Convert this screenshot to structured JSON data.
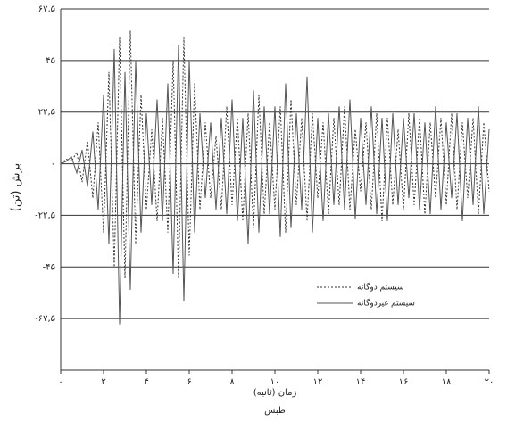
{
  "chart_data": {
    "type": "line",
    "x_label": "زمان (ثانیه)",
    "subtitle": "طبس",
    "y_label": "برش (تن)",
    "x": [
      0,
      0.25,
      0.5,
      0.75,
      1,
      1.25,
      1.5,
      1.75,
      2,
      2.25,
      2.5,
      2.75,
      3,
      3.25,
      3.5,
      3.75,
      4,
      4.25,
      4.5,
      4.75,
      5,
      5.25,
      5.5,
      5.75,
      6,
      6.25,
      6.5,
      6.75,
      7,
      7.25,
      7.5,
      7.75,
      8,
      8.25,
      8.5,
      8.75,
      9,
      9.25,
      9.5,
      9.75,
      10,
      10.25,
      10.5,
      10.75,
      11,
      11.25,
      11.5,
      11.75,
      12,
      12.25,
      12.5,
      12.75,
      13,
      13.25,
      13.5,
      13.75,
      14,
      14.25,
      14.5,
      14.75,
      15,
      15.25,
      15.5,
      15.75,
      16,
      16.25,
      16.5,
      16.75,
      17,
      17.25,
      17.5,
      17.75,
      18,
      18.25,
      18.5,
      18.75,
      19,
      19.25,
      19.5,
      19.75,
      20
    ],
    "series": [
      {
        "name": "سیستم دوگانه",
        "color": "#333333",
        "dashed": true,
        "values": [
          0,
          2,
          1,
          5,
          -8,
          10,
          -15,
          18,
          -30,
          40,
          -45,
          55,
          -50,
          58,
          -35,
          30,
          -20,
          15,
          -25,
          20,
          -30,
          45,
          -50,
          55,
          -40,
          35,
          -20,
          18,
          -15,
          12,
          -20,
          25,
          -18,
          20,
          -25,
          22,
          -28,
          30,
          -22,
          18,
          -20,
          25,
          -30,
          28,
          -18,
          20,
          -25,
          22,
          -15,
          18,
          -22,
          20,
          -18,
          25,
          -20,
          15,
          -12,
          18,
          -20,
          22,
          -25,
          20,
          -18,
          15,
          -20,
          22,
          -18,
          20,
          -22,
          18,
          -15,
          20,
          -18,
          22,
          -20,
          18,
          -15,
          20,
          -22,
          18,
          -12
        ]
      },
      {
        "name": "سیستم غیردوگانه",
        "color": "#555555",
        "dashed": false,
        "values": [
          0,
          1,
          3,
          -4,
          6,
          -10,
          14,
          -20,
          30,
          -35,
          50,
          -70,
          40,
          -55,
          45,
          -30,
          22,
          -18,
          28,
          -25,
          35,
          -48,
          52,
          -60,
          45,
          -30,
          22,
          -15,
          18,
          -20,
          20,
          -22,
          28,
          -25,
          20,
          -35,
          32,
          -30,
          25,
          -22,
          25,
          -32,
          35,
          -28,
          22,
          -20,
          38,
          -30,
          20,
          -25,
          22,
          -18,
          25,
          -20,
          28,
          -24,
          20,
          -18,
          25,
          -22,
          20,
          -25,
          22,
          -18,
          20,
          -15,
          22,
          -20,
          18,
          -22,
          25,
          -20,
          18,
          -15,
          22,
          -25,
          20,
          -18,
          25,
          -22,
          15
        ]
      }
    ],
    "xlim": [
      0,
      20
    ],
    "xticks": [
      {
        "value": 0,
        "label": "۰"
      },
      {
        "value": 2,
        "label": "۲"
      },
      {
        "value": 4,
        "label": "۴"
      },
      {
        "value": 6,
        "label": "۶"
      },
      {
        "value": 8,
        "label": "۸"
      },
      {
        "value": 10,
        "label": "۱۰"
      },
      {
        "value": 12,
        "label": "۱۲"
      },
      {
        "value": 14,
        "label": "۱۴"
      },
      {
        "value": 16,
        "label": "۱۶"
      },
      {
        "value": 18,
        "label": "۱۸"
      },
      {
        "value": 20,
        "label": "۲۰"
      }
    ],
    "ylim": [
      -90,
      67.5
    ],
    "yticks": [
      {
        "value": 67.5,
        "label": "۶۷,۵"
      },
      {
        "value": 45,
        "label": "۴۵"
      },
      {
        "value": 22.5,
        "label": "۲۲,۵"
      },
      {
        "value": 0,
        "label": "۰"
      },
      {
        "value": -22.5,
        "label": "-۲۲,۵"
      },
      {
        "value": -45,
        "label": "-۴۵"
      },
      {
        "value": -67.5,
        "label": "-۶۷,۵"
      }
    ],
    "grid": true
  }
}
